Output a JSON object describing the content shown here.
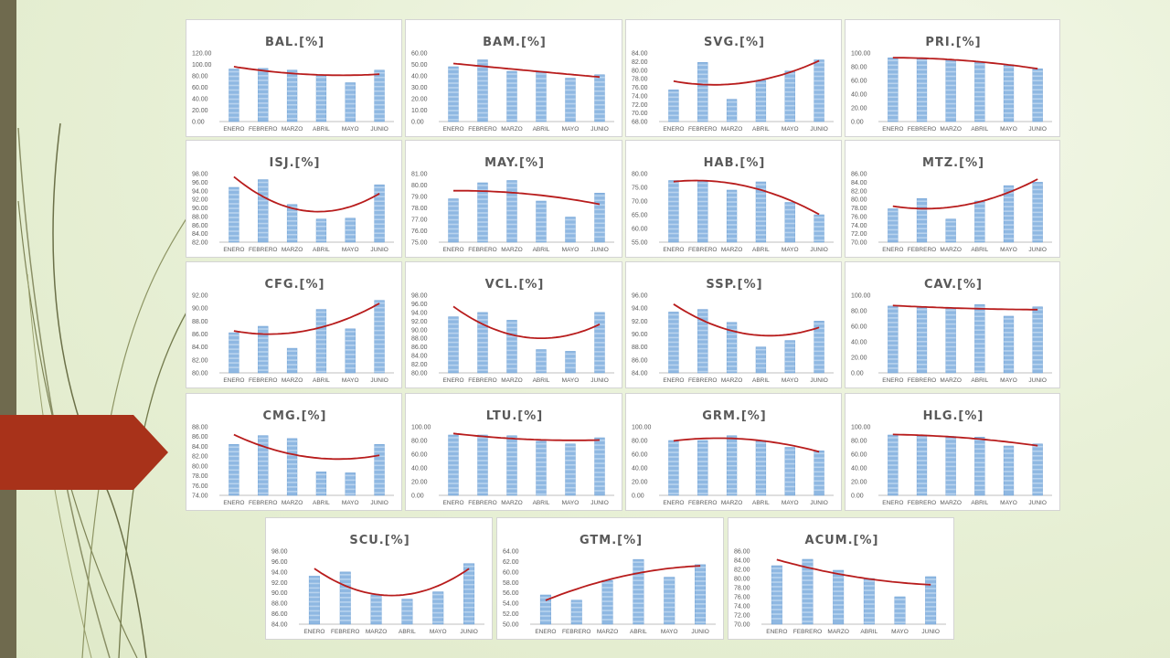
{
  "slide": {
    "colors": {
      "background": "#e9f1d8",
      "left_bar": "#6f6a4e",
      "accent": "#a8321a",
      "bar": "#8fb8e2",
      "trend": "#b81c1c"
    }
  },
  "chart_data": [
    {
      "type": "bar",
      "title": "BAL.[%]",
      "categories": [
        "ENERO",
        "FEBRERO",
        "MARZO",
        "ABRIL",
        "MAYO",
        "JUNIO"
      ],
      "values": [
        92,
        93,
        90,
        82,
        68,
        90
      ],
      "ylim": [
        0,
        120
      ],
      "yticks": [
        "120.00",
        "100.00",
        "80.00",
        "60.00",
        "40.00",
        "20.00",
        "0.00"
      ],
      "trendline": "polynomial"
    },
    {
      "type": "bar",
      "title": "BAM.[%]",
      "categories": [
        "ENERO",
        "FEBRERO",
        "MARZO",
        "ABRIL",
        "MAYO",
        "JUNIO"
      ],
      "values": [
        48,
        54,
        44,
        44,
        38,
        41
      ],
      "ylim": [
        0,
        60
      ],
      "yticks": [
        "60.00",
        "50.00",
        "40.00",
        "30.00",
        "20.00",
        "10.00",
        "0.00"
      ],
      "trendline": "polynomial"
    },
    {
      "type": "bar",
      "title": "SVG.[%]",
      "categories": [
        "ENERO",
        "FEBRERO",
        "MARZO",
        "ABRIL",
        "MAYO",
        "JUNIO"
      ],
      "values": [
        75.4,
        81.8,
        73.2,
        77.6,
        79.8,
        82.4
      ],
      "ylim": [
        68,
        84
      ],
      "yticks": [
        "84.00",
        "82.00",
        "80.00",
        "78.00",
        "76.00",
        "74.00",
        "72.00",
        "70.00",
        "68.00"
      ],
      "trendline": "polynomial"
    },
    {
      "type": "bar",
      "title": "PRI.[%]",
      "categories": [
        "ENERO",
        "FEBRERO",
        "MARZO",
        "ABRIL",
        "MAYO",
        "JUNIO"
      ],
      "values": [
        93,
        93,
        90,
        87,
        83,
        77
      ],
      "ylim": [
        0,
        100
      ],
      "yticks": [
        "100.00",
        "80.00",
        "60.00",
        "40.00",
        "20.00",
        "0.00"
      ],
      "trendline": "polynomial"
    },
    {
      "type": "bar",
      "title": "ISJ.[%]",
      "categories": [
        "ENERO",
        "FEBRERO",
        "MARZO",
        "ABRIL",
        "MAYO",
        "JUNIO"
      ],
      "values": [
        94.8,
        96.6,
        90.8,
        87.4,
        87.6,
        95.4
      ],
      "ylim": [
        82,
        98
      ],
      "yticks": [
        "98.00",
        "96.00",
        "94.00",
        "92.00",
        "90.00",
        "88.00",
        "86.00",
        "84.00",
        "82.00"
      ],
      "trendline": "polynomial"
    },
    {
      "type": "bar",
      "title": "MAY.[%]",
      "categories": [
        "ENERO",
        "FEBRERO",
        "MARZO",
        "ABRIL",
        "MAYO",
        "JUNIO"
      ],
      "values": [
        78.8,
        80.2,
        80.4,
        78.6,
        77.2,
        79.3
      ],
      "ylim": [
        75,
        81
      ],
      "yticks": [
        "81.00",
        "80.00",
        "79.00",
        "78.00",
        "77.00",
        "76.00",
        "75.00"
      ],
      "trendline": "polynomial"
    },
    {
      "type": "bar",
      "title": "HAB.[%]",
      "categories": [
        "ENERO",
        "FEBRERO",
        "MARZO",
        "ABRIL",
        "MAYO",
        "JUNIO"
      ],
      "values": [
        77.5,
        77.5,
        74,
        77,
        69.5,
        65
      ],
      "ylim": [
        55,
        80
      ],
      "yticks": [
        "80.00",
        "75.00",
        "70.00",
        "65.00",
        "60.00",
        "55.00"
      ],
      "trendline": "polynomial"
    },
    {
      "type": "bar",
      "title": "MTZ.[%]",
      "categories": [
        "ENERO",
        "FEBRERO",
        "MARZO",
        "ABRIL",
        "MAYO",
        "JUNIO"
      ],
      "values": [
        77.8,
        80.2,
        75.4,
        79.6,
        83.2,
        84
      ],
      "ylim": [
        70,
        86
      ],
      "yticks": [
        "86.00",
        "84.00",
        "82.00",
        "80.00",
        "78.00",
        "76.00",
        "74.00",
        "72.00",
        "70.00"
      ],
      "trendline": "polynomial"
    },
    {
      "type": "bar",
      "title": "CFG.[%]",
      "categories": [
        "ENERO",
        "FEBRERO",
        "MARZO",
        "ABRIL",
        "MAYO",
        "JUNIO"
      ],
      "values": [
        86.2,
        87.2,
        83.8,
        89.8,
        86.8,
        91.2
      ],
      "ylim": [
        80,
        92
      ],
      "yticks": [
        "92.00",
        "90.00",
        "88.00",
        "86.00",
        "84.00",
        "82.00",
        "80.00"
      ],
      "trendline": "polynomial"
    },
    {
      "type": "bar",
      "title": "VCL.[%]",
      "categories": [
        "ENERO",
        "FEBRERO",
        "MARZO",
        "ABRIL",
        "MAYO",
        "JUNIO"
      ],
      "values": [
        93,
        94,
        92.2,
        85.4,
        85,
        94
      ],
      "ylim": [
        80,
        98
      ],
      "yticks": [
        "98.00",
        "96.00",
        "94.00",
        "92.00",
        "90.00",
        "88.00",
        "86.00",
        "84.00",
        "82.00",
        "80.00"
      ],
      "trendline": "polynomial"
    },
    {
      "type": "bar",
      "title": "SSP.[%]",
      "categories": [
        "ENERO",
        "FEBRERO",
        "MARZO",
        "ABRIL",
        "MAYO",
        "JUNIO"
      ],
      "values": [
        93.4,
        93.8,
        91.8,
        88,
        89,
        92
      ],
      "ylim": [
        84,
        96
      ],
      "yticks": [
        "96.00",
        "94.00",
        "92.00",
        "90.00",
        "88.00",
        "86.00",
        "84.00"
      ],
      "trendline": "polynomial"
    },
    {
      "type": "bar",
      "title": "CAV.[%]",
      "categories": [
        "ENERO",
        "FEBRERO",
        "MARZO",
        "ABRIL",
        "MAYO",
        "JUNIO"
      ],
      "values": [
        86,
        85,
        84,
        88,
        73,
        85
      ],
      "ylim": [
        0,
        100
      ],
      "yticks": [
        "100.00",
        "80.00",
        "60.00",
        "40.00",
        "20.00",
        "0.00"
      ],
      "trendline": "polynomial"
    },
    {
      "type": "bar",
      "title": "CMG.[%]",
      "categories": [
        "ENERO",
        "FEBRERO",
        "MARZO",
        "ABRIL",
        "MAYO",
        "JUNIO"
      ],
      "values": [
        84.4,
        86.2,
        85.6,
        78.8,
        78.6,
        84.4
      ],
      "ylim": [
        74,
        88
      ],
      "yticks": [
        "88.00",
        "86.00",
        "84.00",
        "82.00",
        "80.00",
        "78.00",
        "76.00",
        "74.00"
      ],
      "trendline": "polynomial"
    },
    {
      "type": "bar",
      "title": "LTU.[%]",
      "categories": [
        "ENERO",
        "FEBRERO",
        "MARZO",
        "ABRIL",
        "MAYO",
        "JUNIO"
      ],
      "values": [
        88,
        88,
        87,
        79,
        75,
        84
      ],
      "ylim": [
        0,
        100
      ],
      "yticks": [
        "100.00",
        "80.00",
        "60.00",
        "40.00",
        "20.00",
        "0.00"
      ],
      "trendline": "polynomial"
    },
    {
      "type": "bar",
      "title": "GRM.[%]",
      "categories": [
        "ENERO",
        "FEBRERO",
        "MARZO",
        "ABRIL",
        "MAYO",
        "JUNIO"
      ],
      "values": [
        80,
        80,
        87,
        80,
        70,
        65
      ],
      "ylim": [
        0,
        100
      ],
      "yticks": [
        "100.00",
        "80.00",
        "60.00",
        "40.00",
        "20.00",
        "0.00"
      ],
      "trendline": "polynomial"
    },
    {
      "type": "bar",
      "title": "HLG.[%]",
      "categories": [
        "ENERO",
        "FEBRERO",
        "MARZO",
        "ABRIL",
        "MAYO",
        "JUNIO"
      ],
      "values": [
        88,
        88,
        86,
        85,
        72,
        75
      ],
      "ylim": [
        0,
        100
      ],
      "yticks": [
        "100.00",
        "80.00",
        "60.00",
        "40.00",
        "20.00",
        "0.00"
      ],
      "trendline": "polynomial"
    },
    {
      "type": "bar",
      "title": "SCU.[%]",
      "categories": [
        "ENERO",
        "FEBRERO",
        "MARZO",
        "ABRIL",
        "MAYO",
        "JUNIO"
      ],
      "values": [
        93.2,
        94,
        89.6,
        88.8,
        90.2,
        95.6
      ],
      "ylim": [
        84,
        98
      ],
      "yticks": [
        "98.00",
        "96.00",
        "94.00",
        "92.00",
        "90.00",
        "88.00",
        "86.00",
        "84.00"
      ],
      "trendline": "polynomial"
    },
    {
      "type": "bar",
      "title": "GTM.[%]",
      "categories": [
        "ENERO",
        "FEBRERO",
        "MARZO",
        "ABRIL",
        "MAYO",
        "JUNIO"
      ],
      "values": [
        55.6,
        54.6,
        58.4,
        62.4,
        59,
        61.4
      ],
      "ylim": [
        50,
        64
      ],
      "yticks": [
        "64.00",
        "62.00",
        "60.00",
        "58.00",
        "56.00",
        "54.00",
        "52.00",
        "50.00"
      ],
      "trendline": "polynomial"
    },
    {
      "type": "bar",
      "title": "ACUM.[%]",
      "categories": [
        "ENERO",
        "FEBRERO",
        "MARZO",
        "ABRIL",
        "MAYO",
        "JUNIO"
      ],
      "values": [
        82.8,
        84.2,
        81.8,
        80,
        76,
        80.4
      ],
      "ylim": [
        70,
        86
      ],
      "yticks": [
        "86.00",
        "84.00",
        "82.00",
        "80.00",
        "78.00",
        "76.00",
        "74.00",
        "72.00",
        "70.00"
      ],
      "trendline": "polynomial"
    }
  ]
}
